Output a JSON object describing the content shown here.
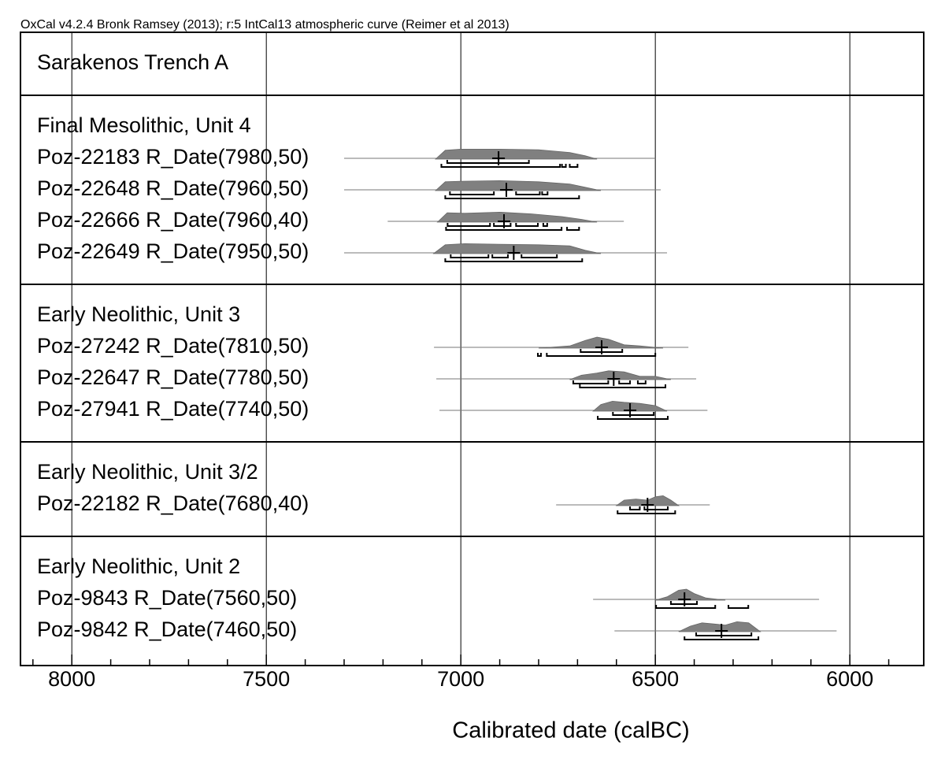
{
  "chart_data": {
    "type": "multiplot",
    "header": "OxCal v4.2.4 Bronk Ramsey (2013); r:5 IntCal13 atmospheric curve (Reimer et al 2013)",
    "title": "Sarakenos Trench A",
    "xlabel": "Calibrated date (calBC)",
    "xlim": [
      8132,
      5810
    ],
    "xticks": [
      8000,
      7500,
      7000,
      6500,
      6000
    ],
    "xminorticks": [
      8100,
      7900,
      7800,
      7700,
      7600,
      7400,
      7300,
      7200,
      7100,
      6900,
      6800,
      6700,
      6600,
      6400,
      6300,
      6200,
      6100,
      5900
    ],
    "grid": true,
    "color": "#808080",
    "groups": [
      {
        "name": "Final Mesolithic, Unit 4",
        "dates": [
          {
            "label": "Poz-22183 R_Date(7980,50)",
            "extent": [
              7300,
              6500
            ],
            "mean": 6903,
            "range68": [
              [
                7035,
                6825
              ]
            ],
            "range95": [
              [
                7050,
                6745
              ],
              [
                6740,
                6730
              ],
              [
                6720,
                6700
              ]
            ],
            "density": {
              "x": [
                7065,
                7040,
                7000,
                6900,
                6800,
                6720,
                6680,
                6650
              ],
              "y": [
                0,
                0.8,
                0.9,
                0.9,
                0.85,
                0.6,
                0.3,
                0
              ]
            }
          },
          {
            "label": "Poz-22648 R_Date(7960,50)",
            "extent": [
              7300,
              6486
            ],
            "mean": 6883,
            "range68": [
              [
                7028,
                6915
              ],
              [
                6858,
                6797
              ],
              [
                6791,
                6777
              ]
            ],
            "range95": [
              [
                7040,
                6696
              ]
            ],
            "density": {
              "x": [
                7065,
                7040,
                7000,
                6900,
                6800,
                6720,
                6680,
                6640
              ],
              "y": [
                0,
                0.8,
                0.85,
                0.9,
                0.8,
                0.6,
                0.3,
                0
              ]
            }
          },
          {
            "label": "Poz-22666 R_Date(7960,40)",
            "extent": [
              7188,
              6581
            ],
            "mean": 6889,
            "range68": [
              [
                7034,
                6925
              ],
              [
                6915,
                6872
              ],
              [
                6858,
                6802
              ],
              [
                6788,
                6778
              ]
            ],
            "range95": [
              [
                7038,
                6741
              ],
              [
                6727,
                6696
              ]
            ],
            "density": {
              "x": [
                7060,
                7035,
                6990,
                6900,
                6820,
                6740,
                6690,
                6650
              ],
              "y": [
                0,
                0.85,
                0.8,
                0.9,
                0.75,
                0.5,
                0.25,
                0
              ]
            }
          },
          {
            "label": "Poz-22649 R_Date(7950,50)",
            "extent": [
              7300,
              6470
            ],
            "mean": 6864,
            "range68": [
              [
                7026,
                6929
              ],
              [
                6919,
                6879
              ],
              [
                6844,
                6753
              ]
            ],
            "range95": [
              [
                7040,
                6688
              ]
            ],
            "density": {
              "x": [
                7070,
                7040,
                6990,
                6900,
                6800,
                6720,
                6680,
                6640
              ],
              "y": [
                0,
                0.8,
                0.9,
                0.85,
                0.8,
                0.7,
                0.3,
                0
              ]
            }
          }
        ]
      },
      {
        "name": "Early Neolithic, Unit 3",
        "dates": [
          {
            "label": "Poz-27242 R_Date(7810,50)",
            "extent": [
              7069,
              6415
            ],
            "mean": 6638,
            "range68": [
              [
                6692,
                6585
              ]
            ],
            "range95": [
              [
                6802,
                6794
              ],
              [
                6779,
                6500
              ]
            ],
            "density": {
              "x": [
                6800,
                6720,
                6680,
                6650,
                6620,
                6580,
                6540,
                6480
              ],
              "y": [
                0,
                0.2,
                0.7,
                1,
                0.8,
                0.3,
                0.2,
                0
              ]
            }
          },
          {
            "label": "Poz-22647 R_Date(7780,50)",
            "extent": [
              7063,
              6395
            ],
            "mean": 6607,
            "range68": [
              [
                6711,
                6621
              ],
              [
                6593,
                6565
              ],
              [
                6545,
                6525
              ]
            ],
            "range95": [
              [
                6694,
                6474
              ]
            ],
            "density": {
              "x": [
                6720,
                6690,
                6650,
                6620,
                6580,
                6540,
                6500,
                6460
              ],
              "y": [
                0,
                0.4,
                0.6,
                0.8,
                0.7,
                0.3,
                0.3,
                0
              ]
            }
          },
          {
            "label": "Poz-27941 R_Date(7740,50)",
            "extent": [
              7055,
              6366
            ],
            "mean": 6565,
            "range68": [
              [
                6609,
                6504
              ]
            ],
            "range95": [
              [
                6648,
                6468
              ]
            ],
            "density": {
              "x": [
                6660,
                6640,
                6610,
                6580,
                6540,
                6500,
                6470
              ],
              "y": [
                0,
                0.6,
                0.9,
                0.8,
                0.7,
                0.5,
                0
              ]
            }
          }
        ]
      },
      {
        "name": "Early Neolithic, Unit 3/2",
        "dates": [
          {
            "label": "Poz-22182 R_Date(7680,40)",
            "extent": [
              6755,
              6360
            ],
            "mean": 6520,
            "range68": [
              [
                6565,
                6540
              ],
              [
                6528,
                6468
              ]
            ],
            "range95": [
              [
                6597,
                6449
              ]
            ],
            "density": {
              "x": [
                6600,
                6580,
                6550,
                6520,
                6500,
                6480,
                6460,
                6440
              ],
              "y": [
                0,
                0.5,
                0.6,
                0.5,
                0.8,
                0.9,
                0.5,
                0
              ]
            }
          }
        ]
      },
      {
        "name": "Early Neolithic, Unit 2",
        "dates": [
          {
            "label": "Poz-9843 R_Date(7560,50)",
            "extent": [
              6660,
              6079
            ],
            "mean": 6425,
            "range68": [
              [
                6460,
                6393
              ]
            ],
            "range95": [
              [
                6498,
                6346
              ],
              [
                6312,
                6261
              ]
            ],
            "density": {
              "x": [
                6500,
                6470,
                6440,
                6420,
                6400,
                6370,
                6320
              ],
              "y": [
                0,
                0.3,
                0.9,
                1,
                0.6,
                0.2,
                0
              ]
            }
          },
          {
            "label": "Poz-9842 R_Date(7460,50)",
            "extent": [
              6605,
              6034
            ],
            "mean": 6330,
            "range68": [
              [
                6395,
                6253
              ]
            ],
            "range95": [
              [
                6425,
                6235
              ]
            ],
            "density": {
              "x": [
                6440,
                6410,
                6380,
                6350,
                6320,
                6290,
                6260,
                6230
              ],
              "y": [
                0,
                0.5,
                0.8,
                0.7,
                0.6,
                0.9,
                0.8,
                0
              ]
            }
          }
        ]
      }
    ]
  }
}
